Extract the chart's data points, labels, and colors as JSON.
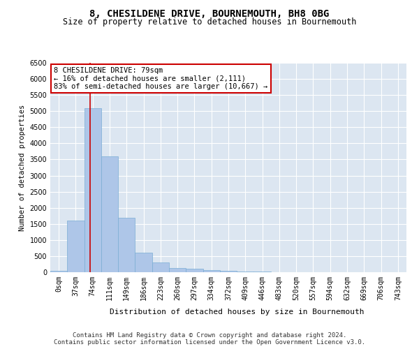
{
  "title": "8, CHESILDENE DRIVE, BOURNEMOUTH, BH8 0BG",
  "subtitle": "Size of property relative to detached houses in Bournemouth",
  "xlabel": "Distribution of detached houses by size in Bournemouth",
  "ylabel": "Number of detached properties",
  "bar_labels": [
    "0sqm",
    "37sqm",
    "74sqm",
    "111sqm",
    "149sqm",
    "186sqm",
    "223sqm",
    "260sqm",
    "297sqm",
    "334sqm",
    "372sqm",
    "409sqm",
    "446sqm",
    "483sqm",
    "520sqm",
    "557sqm",
    "594sqm",
    "632sqm",
    "669sqm",
    "706sqm",
    "743sqm"
  ],
  "bar_values": [
    50,
    1600,
    5100,
    3600,
    1700,
    600,
    300,
    130,
    100,
    70,
    50,
    30,
    20,
    8,
    5,
    3,
    2,
    1,
    1,
    1,
    0
  ],
  "bar_color": "#aec6e8",
  "bar_edge_color": "#7aadd4",
  "vline_color": "#cc0000",
  "vline_x": 1.85,
  "annotation_text": "8 CHESILDENE DRIVE: 79sqm\n← 16% of detached houses are smaller (2,111)\n83% of semi-detached houses are larger (10,667) →",
  "annotation_box_facecolor": "#ffffff",
  "annotation_box_edgecolor": "#cc0000",
  "ylim": [
    0,
    6500
  ],
  "yticks": [
    0,
    500,
    1000,
    1500,
    2000,
    2500,
    3000,
    3500,
    4000,
    4500,
    5000,
    5500,
    6000,
    6500
  ],
  "plot_bg_color": "#dce6f1",
  "grid_color": "#ffffff",
  "footer_line1": "Contains HM Land Registry data © Crown copyright and database right 2024.",
  "footer_line2": "Contains public sector information licensed under the Open Government Licence v3.0.",
  "title_fontsize": 10,
  "subtitle_fontsize": 8.5,
  "xlabel_fontsize": 8,
  "ylabel_fontsize": 7.5,
  "tick_fontsize": 7,
  "annotation_fontsize": 7.5,
  "footer_fontsize": 6.5
}
